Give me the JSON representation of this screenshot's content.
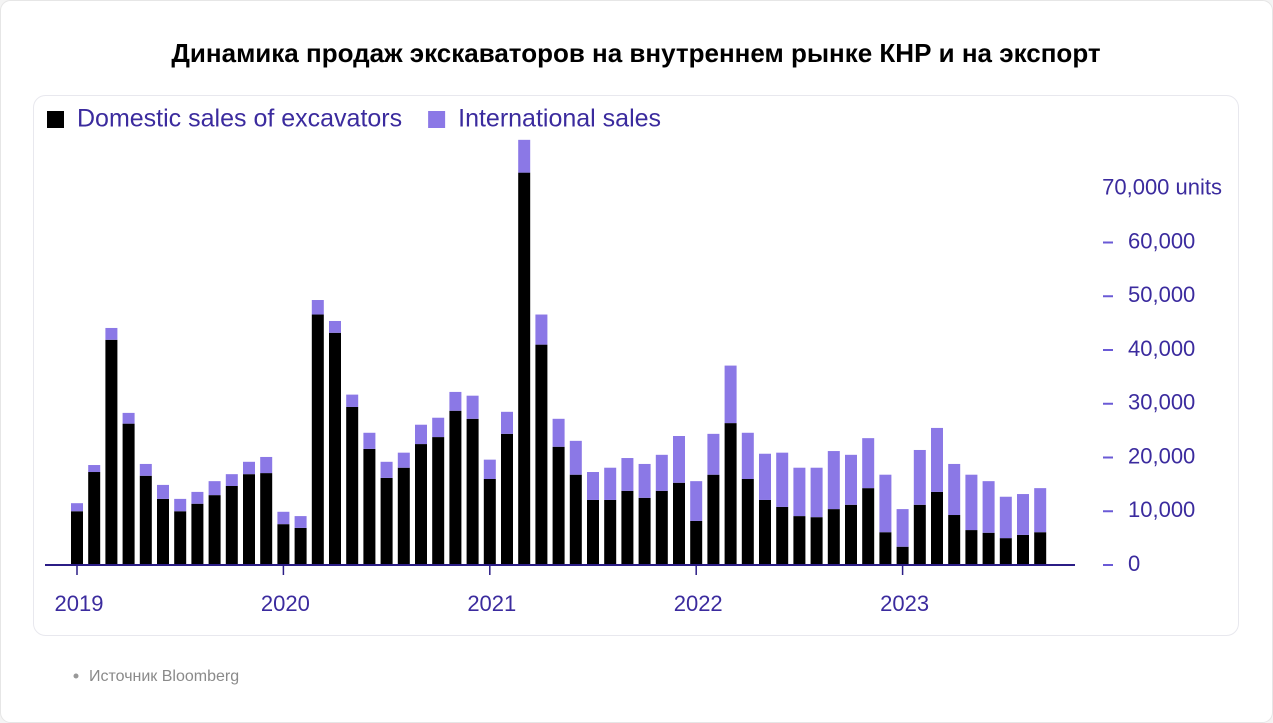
{
  "chart_data": {
    "type": "stacked_bar",
    "title": "Динамика продаж экскаваторов на внутреннем рынке КНР и на экспорт",
    "source": "Источник Bloomberg",
    "categories": [
      "2019",
      null,
      null,
      null,
      null,
      null,
      null,
      null,
      null,
      null,
      null,
      null,
      "2020",
      null,
      null,
      null,
      null,
      null,
      null,
      null,
      null,
      null,
      null,
      null,
      "2021",
      null,
      null,
      null,
      null,
      null,
      null,
      null,
      null,
      null,
      null,
      null,
      "2022",
      null,
      null,
      null,
      null,
      null,
      null,
      null,
      null,
      null,
      null,
      null,
      "2023",
      null,
      null,
      null,
      null,
      null,
      null,
      null,
      null
    ],
    "series": [
      {
        "name": "Domestic sales of excavators",
        "color": "#000000",
        "values": [
          10000,
          17300,
          41900,
          26300,
          16600,
          12300,
          10000,
          11400,
          13000,
          14700,
          16900,
          17100,
          7600,
          6900,
          46600,
          43200,
          29400,
          21600,
          16200,
          18100,
          22500,
          23800,
          28700,
          27200,
          16000,
          24400,
          73000,
          41000,
          22000,
          16800,
          12100,
          12100,
          13800,
          12500,
          13800,
          15300,
          8200,
          16800,
          26400,
          16000,
          12100,
          10800,
          9100,
          8900,
          10400,
          11200,
          14300,
          6100,
          3400,
          11200,
          13600,
          9300,
          6500,
          6000,
          5000,
          5600,
          6100
        ]
      },
      {
        "name": "International sales",
        "color": "#8b78e6",
        "values": [
          1500,
          1300,
          2200,
          2000,
          2200,
          2600,
          2300,
          2200,
          2600,
          2200,
          2300,
          3000,
          2300,
          2200,
          2700,
          2200,
          2300,
          3000,
          3000,
          2800,
          3600,
          3600,
          3500,
          4300,
          3600,
          4100,
          6100,
          5600,
          5200,
          6300,
          5200,
          6000,
          6100,
          6300,
          6700,
          8700,
          7400,
          7600,
          10700,
          8600,
          8600,
          10100,
          9000,
          9200,
          10800,
          9300,
          9300,
          10700,
          7000,
          10200,
          11900,
          9500,
          10300,
          9600,
          7700,
          7600,
          8200
        ]
      }
    ],
    "ylim": [
      0,
      80000
    ],
    "yticks": [
      0,
      {
        "value": 10000,
        "label": "10,000"
      },
      {
        "value": 20000,
        "label": "20,000"
      },
      {
        "value": 30000,
        "label": "30,000"
      },
      {
        "value": 40000,
        "label": "40,000"
      },
      {
        "value": 50000,
        "label": "50,000"
      },
      {
        "value": 60000,
        "label": "60,000"
      },
      {
        "value": 70000,
        "label": "70,000 units"
      }
    ],
    "legend": "top-left"
  }
}
